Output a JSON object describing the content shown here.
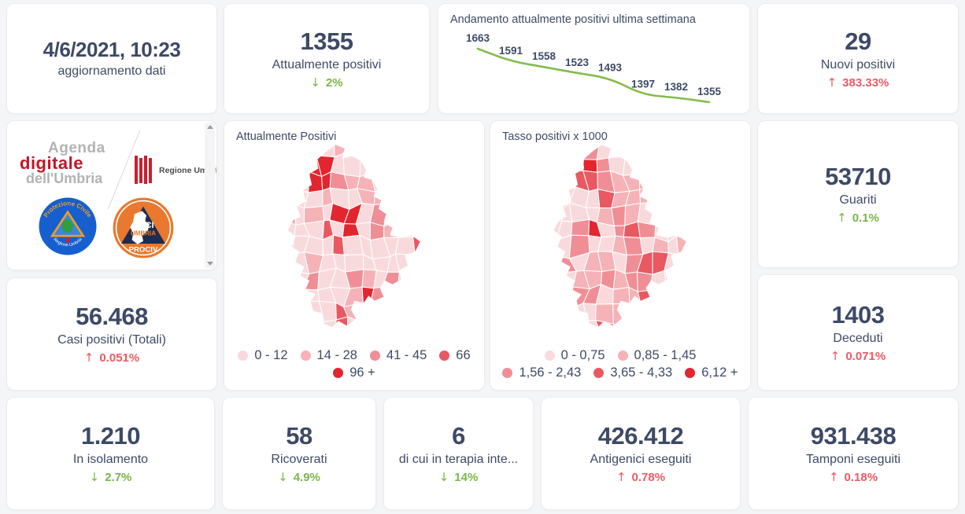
{
  "colors": {
    "text": "#3d4a66",
    "positive_green": "#7ab648",
    "negative_red": "#ee5a64",
    "page_bg": "#f4f5f7",
    "card_bg": "#ffffff",
    "chart_line": "#85bb4d"
  },
  "header_card": {
    "value": "4/6/2021, 10:23",
    "label": "aggiornamento dati"
  },
  "stats": {
    "attualmente_positivi": {
      "value": "1355",
      "label": "Attualmente positivi",
      "delta": "2%",
      "direction": "down",
      "trend": "good"
    },
    "nuovi_positivi": {
      "value": "29",
      "label": "Nuovi positivi",
      "delta": "383.33%",
      "direction": "up",
      "trend": "bad"
    },
    "guariti": {
      "value": "53710",
      "label": "Guariti",
      "delta": "0.1%",
      "direction": "up",
      "trend": "good"
    },
    "casi_positivi_totali": {
      "value": "56.468",
      "label": "Casi positivi (Totali)",
      "delta": "0.051%",
      "direction": "up",
      "trend": "bad"
    },
    "deceduti": {
      "value": "1403",
      "label": "Deceduti",
      "delta": "0.071%",
      "direction": "up",
      "trend": "bad"
    },
    "in_isolamento": {
      "value": "1.210",
      "label": "In isolamento",
      "delta": "2.7%",
      "direction": "down",
      "trend": "good"
    },
    "ricoverati": {
      "value": "58",
      "label": "Ricoverati",
      "delta": "4.9%",
      "direction": "down",
      "trend": "good"
    },
    "terapia_intensiva": {
      "value": "6",
      "label": "di cui in terapia inte...",
      "delta": "14%",
      "direction": "down",
      "trend": "good"
    },
    "antigenici_eseguiti": {
      "value": "426.412",
      "label": "Antigenici eseguiti",
      "delta": "0.78%",
      "direction": "up",
      "trend": "bad"
    },
    "tamponi_eseguiti": {
      "value": "931.438",
      "label": "Tamponi eseguiti",
      "delta": "0.18%",
      "direction": "up",
      "trend": "bad"
    }
  },
  "chart_data": {
    "type": "line",
    "title": "Andamento attualmente positivi ultima settimana",
    "values": [
      1663,
      1591,
      1558,
      1523,
      1493,
      1397,
      1382,
      1355
    ],
    "data_labels": true,
    "grid": false,
    "axes_visible": false,
    "legend": "none",
    "line_color": "#85bb4d",
    "label_color": "#3d4a66",
    "ylim": [
      1300,
      1700
    ]
  },
  "maps": [
    {
      "title": "Attualmente Positivi",
      "type": "choropleth",
      "legend": [
        {
          "label": "0 - 12",
          "color": "#f9dadc"
        },
        {
          "label": "14 - 28",
          "color": "#f5b2b7"
        },
        {
          "label": "41 - 45",
          "color": "#f08e96"
        },
        {
          "label": "66",
          "color": "#ea5862"
        },
        {
          "label": "96 +",
          "color": "#e32530"
        }
      ],
      "legend_rows": [
        4,
        1
      ],
      "base_weights": [
        0.8,
        0.12,
        0.05,
        0.02,
        0.01
      ],
      "hotspots": {
        "2,1": 4,
        "3,1": 4,
        "2,2": 4,
        "3,2": 4,
        "4,2": 2,
        "5,2": 1,
        "6,2": 1,
        "6,3": 1,
        "4,4": 4,
        "5,4": 4,
        "5,5": 4,
        "4,6": 3,
        "7,5": 2,
        "8,5": 1,
        "8,8": 2,
        "6,9": 4,
        "5,9": 1,
        "6,8": 1,
        "2,4": 1,
        "7,3": 1
      }
    },
    {
      "title": "Tasso positivi x 1000",
      "type": "choropleth",
      "legend": [
        {
          "label": "0 - 0,75",
          "color": "#f9dadc"
        },
        {
          "label": "0,85 - 1,45",
          "color": "#f5b2b7"
        },
        {
          "label": "1,56 - 2,43",
          "color": "#f08e96"
        },
        {
          "label": "3,65 - 4,33",
          "color": "#ea5862"
        },
        {
          "label": "6,12 +",
          "color": "#e32530"
        }
      ],
      "legend_rows": [
        2,
        3
      ],
      "base_weights": [
        0.5,
        0.33,
        0.11,
        0.05,
        0.01
      ],
      "hotspots": {
        "3,1": 4,
        "4,1": 2,
        "3,2": 3,
        "4,2": 2,
        "4,3": 3,
        "5,2": 1,
        "2,5": 2,
        "3,5": 4,
        "2,6": 2,
        "5,5": 2,
        "6,6": 2,
        "7,7": 3,
        "6,8": 2,
        "4,8": 2,
        "5,9": 1,
        "6,4": 1
      }
    }
  ],
  "logos": {
    "agenda_digitale": {
      "line1": "Agenda",
      "line2": "digitale",
      "line3": "dell'Umbria",
      "accent": "#c41425",
      "gray": "#b3b3b3"
    },
    "regione_umbria": {
      "label": "Regione Umbria",
      "bar_color": "#c8202f"
    },
    "protezione_civile": {
      "top_text": "Protezione Civile",
      "bottom_text": "Regione Umbria",
      "ring_color": "#1560ce",
      "triangle_color": "#f59a23"
    },
    "anci_prociv": {
      "line1": "ANCI",
      "line2": "UMBRIA",
      "line3": "PROCIV",
      "circle_color": "#e8792e",
      "triangle_color": "#1f2c4d"
    }
  }
}
